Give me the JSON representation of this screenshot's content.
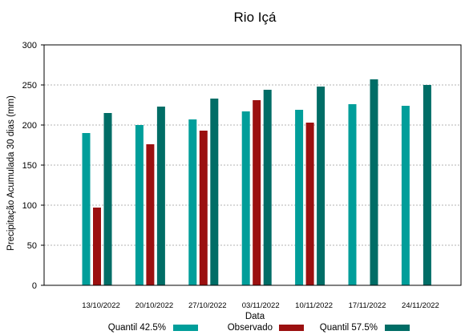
{
  "chart_data": {
    "type": "bar",
    "title": "Rio Içá",
    "xlabel": "Data",
    "ylabel": "Precipitação Acumulada 30 dias (mm)",
    "ylim": [
      0,
      300
    ],
    "yticks": [
      0,
      50,
      100,
      150,
      200,
      250,
      300
    ],
    "grid": true,
    "legend_position": "bottom",
    "categories": [
      "13/10/2022",
      "20/10/2022",
      "27/10/2022",
      "03/11/2022",
      "10/11/2022",
      "17/11/2022",
      "24/11/2022"
    ],
    "series": [
      {
        "name": "Quantil 42.5%",
        "color": "#009e9a",
        "values": [
          190,
          200,
          207,
          217,
          219,
          226,
          224
        ]
      },
      {
        "name": "Observado",
        "color": "#9b1010",
        "values": [
          97,
          176,
          193,
          231,
          203,
          null,
          null
        ]
      },
      {
        "name": "Quantil 57.5%",
        "color": "#006d66",
        "values": [
          215,
          223,
          233,
          244,
          248,
          257,
          250
        ]
      }
    ]
  }
}
